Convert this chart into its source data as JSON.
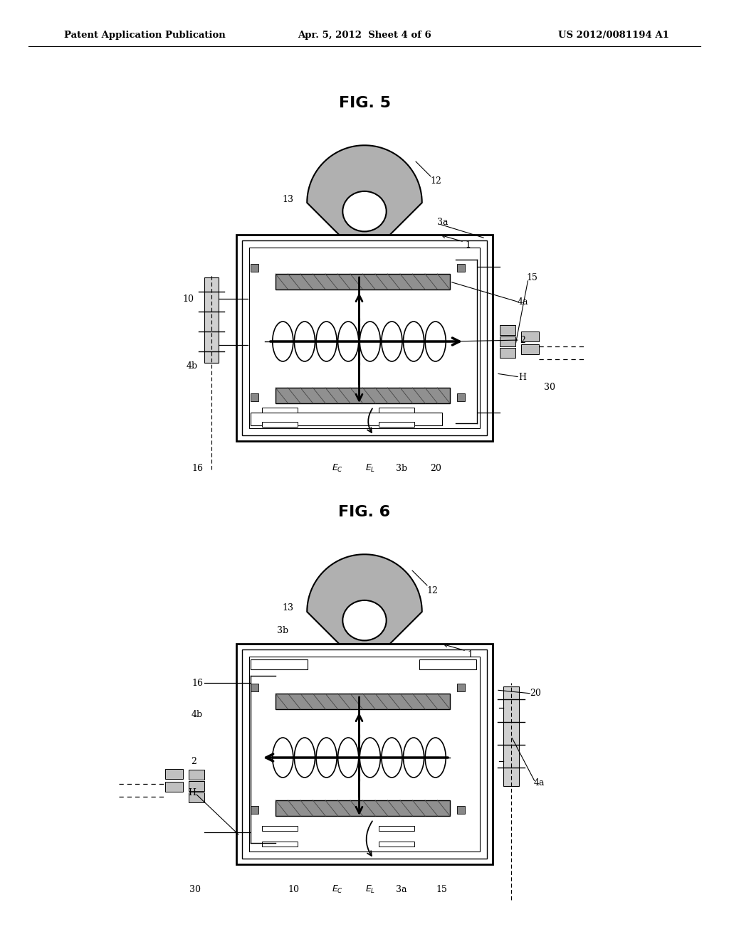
{
  "title_header_left": "Patent Application Publication",
  "title_header_mid": "Apr. 5, 2012  Sheet 4 of 6",
  "title_header_right": "US 2012/0081194 A1",
  "fig5_title": "FIG. 5",
  "fig6_title": "FIG. 6",
  "background_color": "#ffffff",
  "line_color": "#000000",
  "lug_gray": "#b0b0b0",
  "rail_gray": "#909090",
  "connector_gray": "#c0c0c0",
  "sq_gray": "#888888"
}
